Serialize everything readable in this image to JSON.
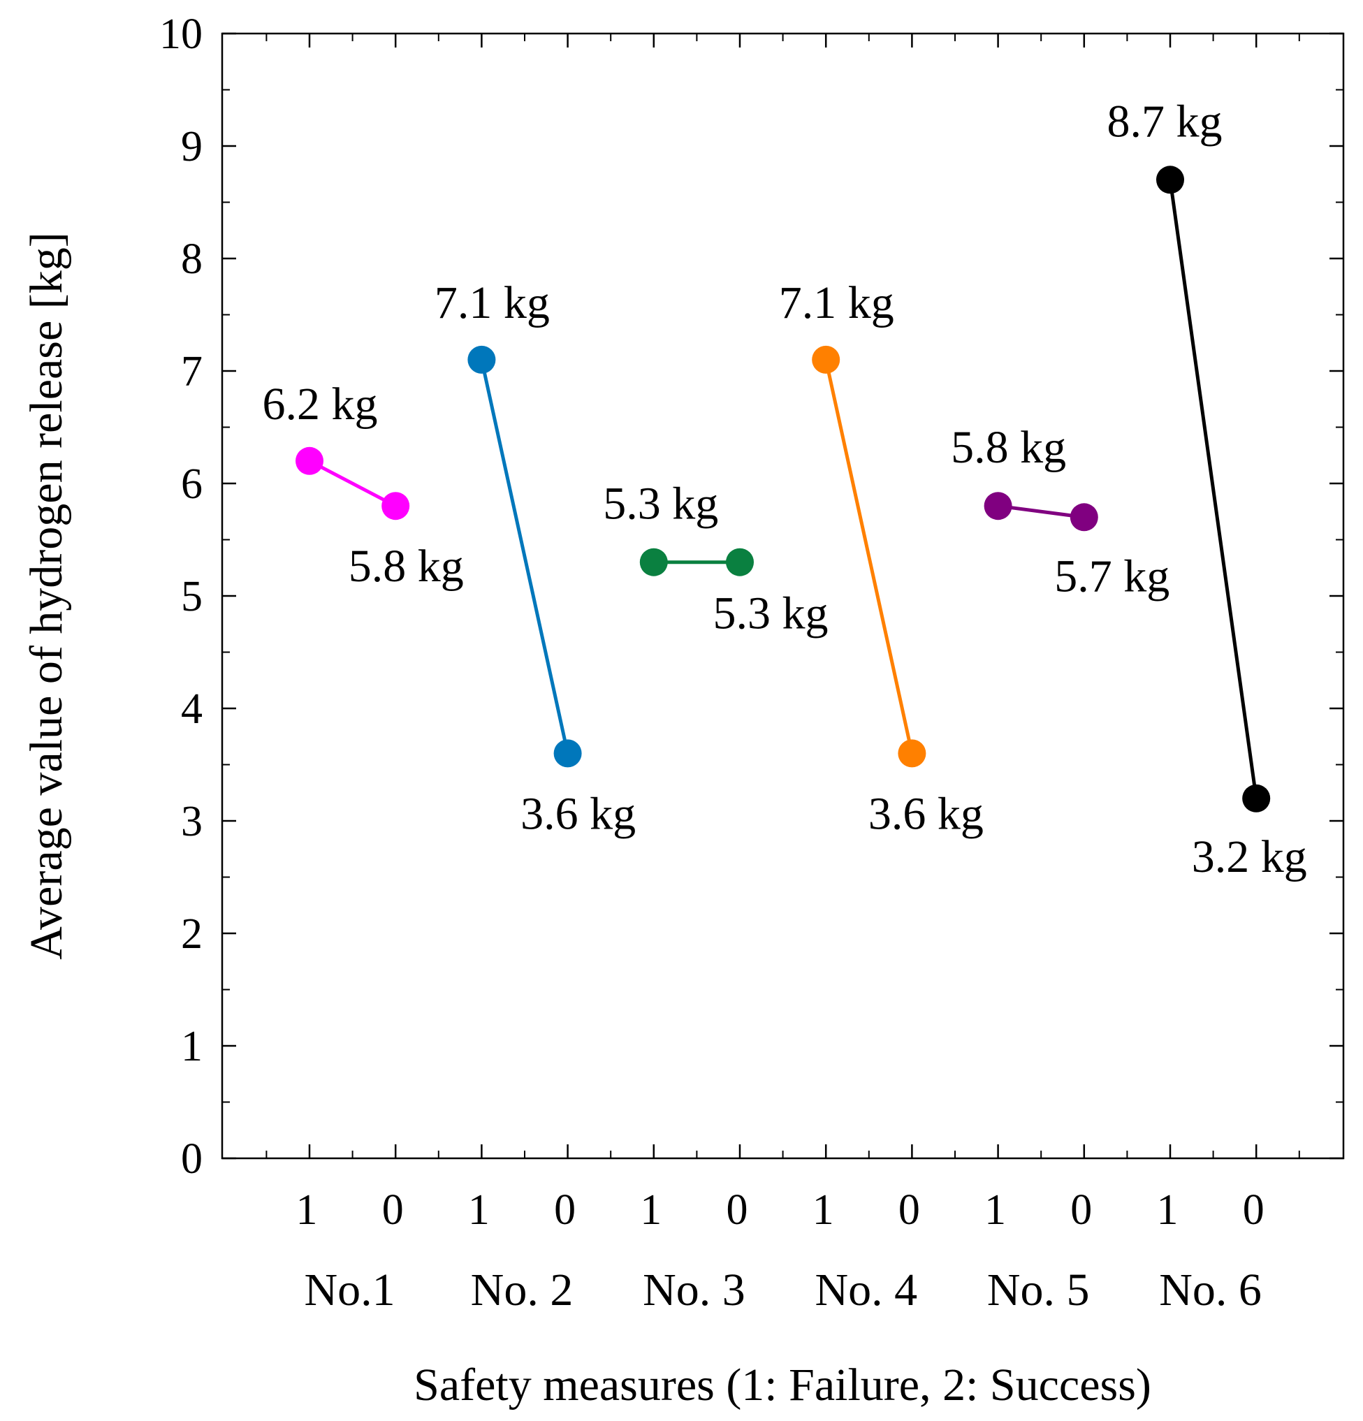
{
  "chart_data": {
    "type": "line",
    "title": "",
    "xlabel": "Safety measures (1: Failure, 2: Success)",
    "ylabel": "Average value of hydrogen release [kg]",
    "ylim": [
      0,
      10
    ],
    "yticks": [
      "0",
      "1",
      "2",
      "3",
      "4",
      "5",
      "6",
      "7",
      "8",
      "9",
      "10"
    ],
    "state_labels": [
      "1",
      "0"
    ],
    "unit": "kg",
    "series": [
      {
        "name": "No.1",
        "color": "#FF00FF",
        "values": [
          6.2,
          5.8
        ],
        "labels": [
          "6.2 kg",
          "5.8 kg"
        ]
      },
      {
        "name": "No. 2",
        "color": "#0077BB",
        "values": [
          7.1,
          3.6
        ],
        "labels": [
          "7.1 kg",
          "3.6 kg"
        ]
      },
      {
        "name": "No. 3",
        "color": "#0A8040",
        "values": [
          5.3,
          5.3
        ],
        "labels": [
          "5.3 kg",
          "5.3 kg"
        ]
      },
      {
        "name": "No. 4",
        "color": "#FF8000",
        "values": [
          7.1,
          3.6
        ],
        "labels": [
          "7.1 kg",
          "3.6 kg"
        ]
      },
      {
        "name": "No. 5",
        "color": "#800080",
        "values": [
          5.8,
          5.7
        ],
        "labels": [
          "5.8 kg",
          "5.7 kg"
        ]
      },
      {
        "name": "No. 6",
        "color": "#000000",
        "values": [
          8.7,
          3.2
        ],
        "labels": [
          "8.7 kg",
          "3.2 kg"
        ]
      }
    ]
  }
}
